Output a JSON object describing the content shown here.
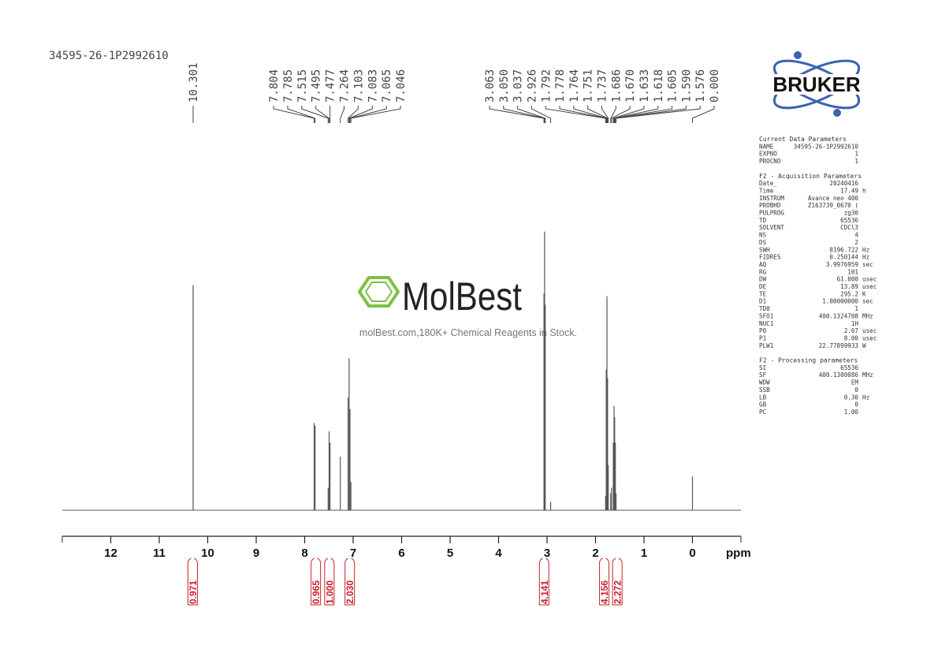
{
  "chart_data": {
    "type": "spectrum",
    "title": "34595-26-1P2992610",
    "xlabel": "ppm",
    "xlim": [
      13,
      -1
    ],
    "xticks": [
      12,
      11,
      10,
      9,
      8,
      7,
      6,
      5,
      4,
      3,
      2,
      1,
      0
    ],
    "ylim": [
      0,
      100
    ],
    "color": "#555555",
    "x": [
      10.301,
      7.804,
      7.785,
      7.515,
      7.495,
      7.477,
      7.264,
      7.103,
      7.083,
      7.065,
      7.046,
      3.063,
      3.05,
      3.037,
      2.926,
      1.792,
      1.778,
      1.764,
      1.751,
      1.737,
      1.686,
      1.67,
      1.633,
      1.618,
      1.605,
      1.59,
      1.576,
      0.0
    ],
    "values": [
      80,
      31,
      30,
      8,
      28,
      24,
      19,
      40,
      54,
      36,
      10,
      77,
      99,
      73,
      3,
      5,
      50,
      76,
      47,
      16,
      6,
      8,
      24,
      37,
      33,
      24,
      6,
      12
    ],
    "peak_labels": [
      "10.301",
      "7.804",
      "7.785",
      "7.515",
      "7.495",
      "7.477",
      "7.264",
      "7.103",
      "7.083",
      "7.065",
      "7.046",
      "3.063",
      "3.050",
      "3.037",
      "2.926",
      "1.792",
      "1.778",
      "1.764",
      "1.751",
      "1.737",
      "1.686",
      "1.670",
      "1.633",
      "1.618",
      "1.605",
      "1.590",
      "1.576",
      "0.000"
    ],
    "integrals": [
      {
        "x": 10.31,
        "value": 0.971
      },
      {
        "x": 7.77,
        "value": 0.965
      },
      {
        "x": 7.49,
        "value": {
          "value": 1,
          "label": "1.000"
        }
      },
      {
        "x": 7.07,
        "value": {
          "value": 2.03,
          "label": "2.030"
        }
      },
      {
        "x": 3.06,
        "value": 4.141
      },
      {
        "x": 1.82,
        "value": 4.156
      },
      {
        "x": 1.55,
        "value": 2.272
      }
    ],
    "integral_color": "#c8202a"
  },
  "logo": "BRUKER",
  "watermark": {
    "brand": "MolBest",
    "tagline": "molBest.com,180K+ Chemical Reagents in Stock."
  },
  "parameters": [
    {
      "title": "Current Data Parameters",
      "rows": [
        [
          "NAME",
          "34595-26-1P2992610"
        ],
        [
          "EXPNO",
          "1"
        ],
        [
          "PROCNO",
          "1"
        ]
      ]
    },
    {
      "title": "F2 - Acquisition Parameters",
      "rows": [
        [
          "Date_",
          "20240416"
        ],
        [
          "Time",
          "17.49",
          "h"
        ],
        [
          "INSTRUM",
          "Avance neo 400"
        ],
        [
          "PROBHD",
          "Z163739_0670 ("
        ],
        [
          "PULPROG",
          "zg30"
        ],
        [
          "TD",
          "65536"
        ],
        [
          "SOLVENT",
          "CDCl3"
        ],
        [
          "NS",
          "4"
        ],
        [
          "DS",
          "2"
        ],
        [
          "SWH",
          "8196.722",
          "Hz"
        ],
        [
          "FIDRES",
          "0.250144",
          "Hz"
        ],
        [
          "AQ",
          "3.9976959",
          "sec"
        ],
        [
          "RG",
          "101"
        ],
        [
          "DW",
          "61.000",
          "usec"
        ],
        [
          "DE",
          "13.89",
          "usec"
        ],
        [
          "TE",
          "295.2",
          "K"
        ],
        [
          "D1",
          "1.00000000",
          "sec"
        ],
        [
          "TD0",
          "1"
        ],
        [
          "SFO1",
          "400.1324708",
          "MHz"
        ],
        [
          "NUC1",
          "1H"
        ],
        [
          "P0",
          "2.67",
          "usec"
        ],
        [
          "P1",
          "8.00",
          "usec"
        ],
        [
          "PLW1",
          "22.77899933",
          "W"
        ]
      ]
    },
    {
      "title": "F2 - Processing parameters",
      "rows": [
        [
          "SI",
          "65536"
        ],
        [
          "SF",
          "400.1300086",
          "MHz"
        ],
        [
          "WDW",
          "EM"
        ],
        [
          "SSB",
          "0"
        ],
        [
          "LB",
          "0.30",
          "Hz"
        ],
        [
          "GB",
          "0"
        ],
        [
          "PC",
          "1.00"
        ]
      ]
    }
  ]
}
